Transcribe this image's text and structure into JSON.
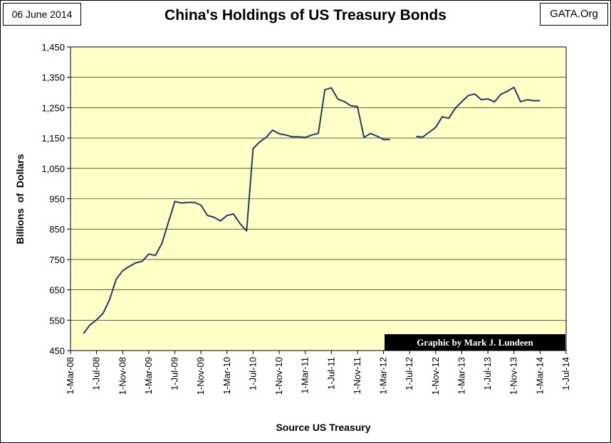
{
  "header": {
    "date": "06 June 2014",
    "source_site": "GATA.Org"
  },
  "credit": "Graphic by Mark J. Lundeen",
  "colors": {
    "plot_bg": "#ffffc8",
    "line": "#243a5e",
    "credit_bg": "#000000"
  },
  "chart_data": {
    "type": "line",
    "title": "China's Holdings of US Treasury Bonds",
    "xlabel": "Source US Treasury",
    "ylabel": "Billions  of  Dollars",
    "ylim": [
      450,
      1450
    ],
    "yticks": [
      450,
      550,
      650,
      750,
      850,
      950,
      1050,
      1150,
      1250,
      1350,
      1450
    ],
    "ytick_labels": [
      "450",
      "550",
      "650",
      "750",
      "850",
      "950",
      "1,050",
      "1,150",
      "1,250",
      "1,350",
      "1,450"
    ],
    "xlim": [
      "2008-03-01",
      "2014-07-01"
    ],
    "xtick_labels": [
      "1-Mar-08",
      "1-Jul-08",
      "1-Nov-08",
      "1-Mar-09",
      "1-Jul-09",
      "1-Nov-09",
      "1-Mar-10",
      "1-Jul-10",
      "1-Nov-10",
      "1-Mar-11",
      "1-Jul-11",
      "1-Nov-11",
      "1-Mar-12",
      "1-Jul-12",
      "1-Nov-12",
      "1-Mar-13",
      "1-Jul-13",
      "1-Nov-13",
      "1-Mar-14",
      "1-Jul-14"
    ],
    "grid": "horizontal",
    "legend": "none",
    "series": [
      {
        "x": [
          "2008-05",
          "2008-06",
          "2008-07",
          "2008-08",
          "2008-09",
          "2008-10",
          "2008-11",
          "2008-12",
          "2009-01",
          "2009-02",
          "2009-03",
          "2009-04",
          "2009-05",
          "2009-06",
          "2009-07",
          "2009-08",
          "2009-09",
          "2009-10",
          "2009-11",
          "2009-12",
          "2010-01",
          "2010-02",
          "2010-03",
          "2010-04",
          "2010-05",
          "2010-06",
          "2010-07",
          "2010-08",
          "2010-09",
          "2010-10",
          "2010-11",
          "2010-12",
          "2011-01",
          "2011-02",
          "2011-03",
          "2011-04",
          "2011-05",
          "2011-06",
          "2011-07",
          "2011-08",
          "2011-09",
          "2011-10",
          "2011-11",
          "2011-12",
          "2012-01",
          "2012-02",
          "2012-03",
          "2012-04",
          null,
          "2012-08",
          "2012-09",
          "2012-10",
          "2012-11",
          "2012-12",
          "2013-01",
          "2013-02",
          "2013-03",
          "2013-04",
          "2013-05",
          "2013-06",
          "2013-07",
          "2013-08",
          "2013-09",
          "2013-10",
          "2013-11",
          "2013-12",
          "2014-01",
          "2014-02",
          "2014-03"
        ],
        "y": [
          506,
          535,
          551,
          573,
          618,
          685,
          713,
          727,
          739,
          744,
          768,
          763,
          802,
          872,
          941,
          936,
          938,
          938,
          929,
          895,
          889,
          877,
          895,
          900,
          868,
          844,
          1115,
          1137,
          1152,
          1176,
          1164,
          1160,
          1154,
          1154,
          1152,
          1160,
          1165,
          1309,
          1315,
          1278,
          1270,
          1256,
          1254,
          1152,
          1165,
          1156,
          1145,
          1145,
          null,
          1155,
          1153,
          1169,
          1185,
          1220,
          1215,
          1248,
          1270,
          1290,
          1295,
          1276,
          1279,
          1269,
          1294,
          1304,
          1317,
          1270,
          1276,
          1273,
          1273
        ]
      }
    ]
  }
}
